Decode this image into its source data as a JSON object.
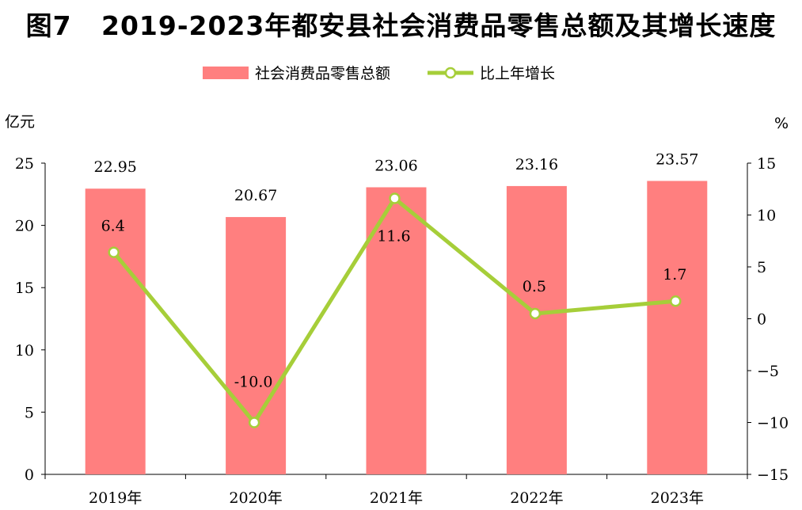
{
  "title": "图7   2019-2023年都安县社会消费品零售总额及其增长速度",
  "chart_data": {
    "type": "bar",
    "categories": [
      "2019年",
      "2020年",
      "2021年",
      "2022年",
      "2023年"
    ],
    "series": [
      {
        "name": "社会消费品零售总额",
        "type": "bar",
        "axis": "left",
        "color": "#ff7f7f",
        "values": [
          22.95,
          20.67,
          23.06,
          23.16,
          23.57
        ],
        "labels": [
          "22.95",
          "20.67",
          "23.06",
          "23.16",
          "23.57"
        ]
      },
      {
        "name": "比上年增长",
        "type": "line",
        "axis": "right",
        "color": "#a6ce39",
        "values": [
          6.4,
          -10.0,
          11.6,
          0.5,
          1.7
        ],
        "labels": [
          "6.4",
          "-10.0",
          "11.6",
          "0.5",
          "1.7"
        ]
      }
    ],
    "y_left": {
      "unit": "亿元",
      "ylim": [
        0,
        25
      ],
      "ticks": [
        0,
        5,
        10,
        15,
        20,
        25
      ],
      "tick_labels": [
        "0",
        "5",
        "10",
        "15",
        "20",
        "25"
      ]
    },
    "y_right": {
      "unit": "%",
      "ylim": [
        -15,
        15
      ],
      "ticks": [
        -15,
        -10,
        -5,
        0,
        5,
        10,
        15
      ],
      "tick_labels": [
        "−15",
        "−10",
        "−5",
        "0",
        "5",
        "10",
        "15"
      ]
    },
    "legend_position": "top-center",
    "grid": false
  }
}
